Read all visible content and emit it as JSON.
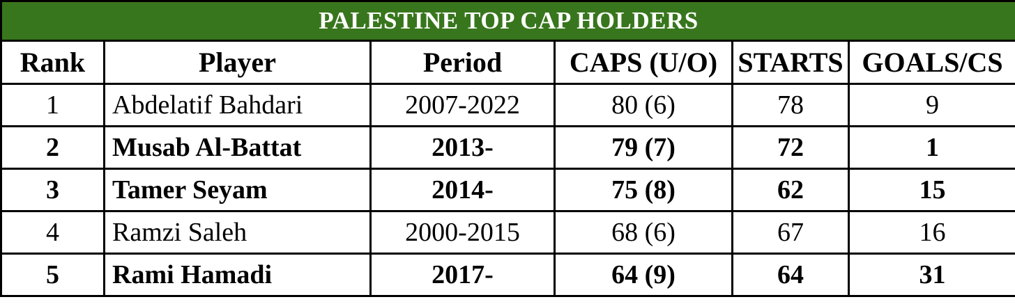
{
  "chart_data": {
    "type": "table",
    "title": "PALESTINE TOP CAP HOLDERS",
    "columns": [
      "Rank",
      "Player",
      "Period",
      "CAPS (U/O)",
      "STARTS",
      "GOALS/CS"
    ],
    "rows": [
      {
        "rank": "1",
        "player": "Abdelatif Bahdari",
        "period": "2007-2022",
        "caps": "80 (6)",
        "starts": "78",
        "goals_cs": "9",
        "bold": false
      },
      {
        "rank": "2",
        "player": "Musab Al-Battat",
        "period": "2013-",
        "caps": "79 (7)",
        "starts": "72",
        "goals_cs": "1",
        "bold": true
      },
      {
        "rank": "3",
        "player": "Tamer Seyam",
        "period": "2014-",
        "caps": "75 (8)",
        "starts": "62",
        "goals_cs": "15",
        "bold": true
      },
      {
        "rank": "4",
        "player": "Ramzi Saleh",
        "period": "2000-2015",
        "caps": "68 (6)",
        "starts": "67",
        "goals_cs": "16",
        "bold": false
      },
      {
        "rank": "5",
        "player": "Rami Hamadi",
        "period": "2017-",
        "caps": "64 (9)",
        "starts": "64",
        "goals_cs": "31",
        "bold": true
      }
    ],
    "layout": {
      "legend": "none",
      "grid": "full black cell borders",
      "bold_rows_meaning": "players with open-ended (active) periods"
    }
  },
  "colors": {
    "title_bg": "#38761d",
    "title_text": "#ffffff",
    "border": "#000000",
    "body_text": "#000000",
    "row_bg": "#ffffff"
  }
}
